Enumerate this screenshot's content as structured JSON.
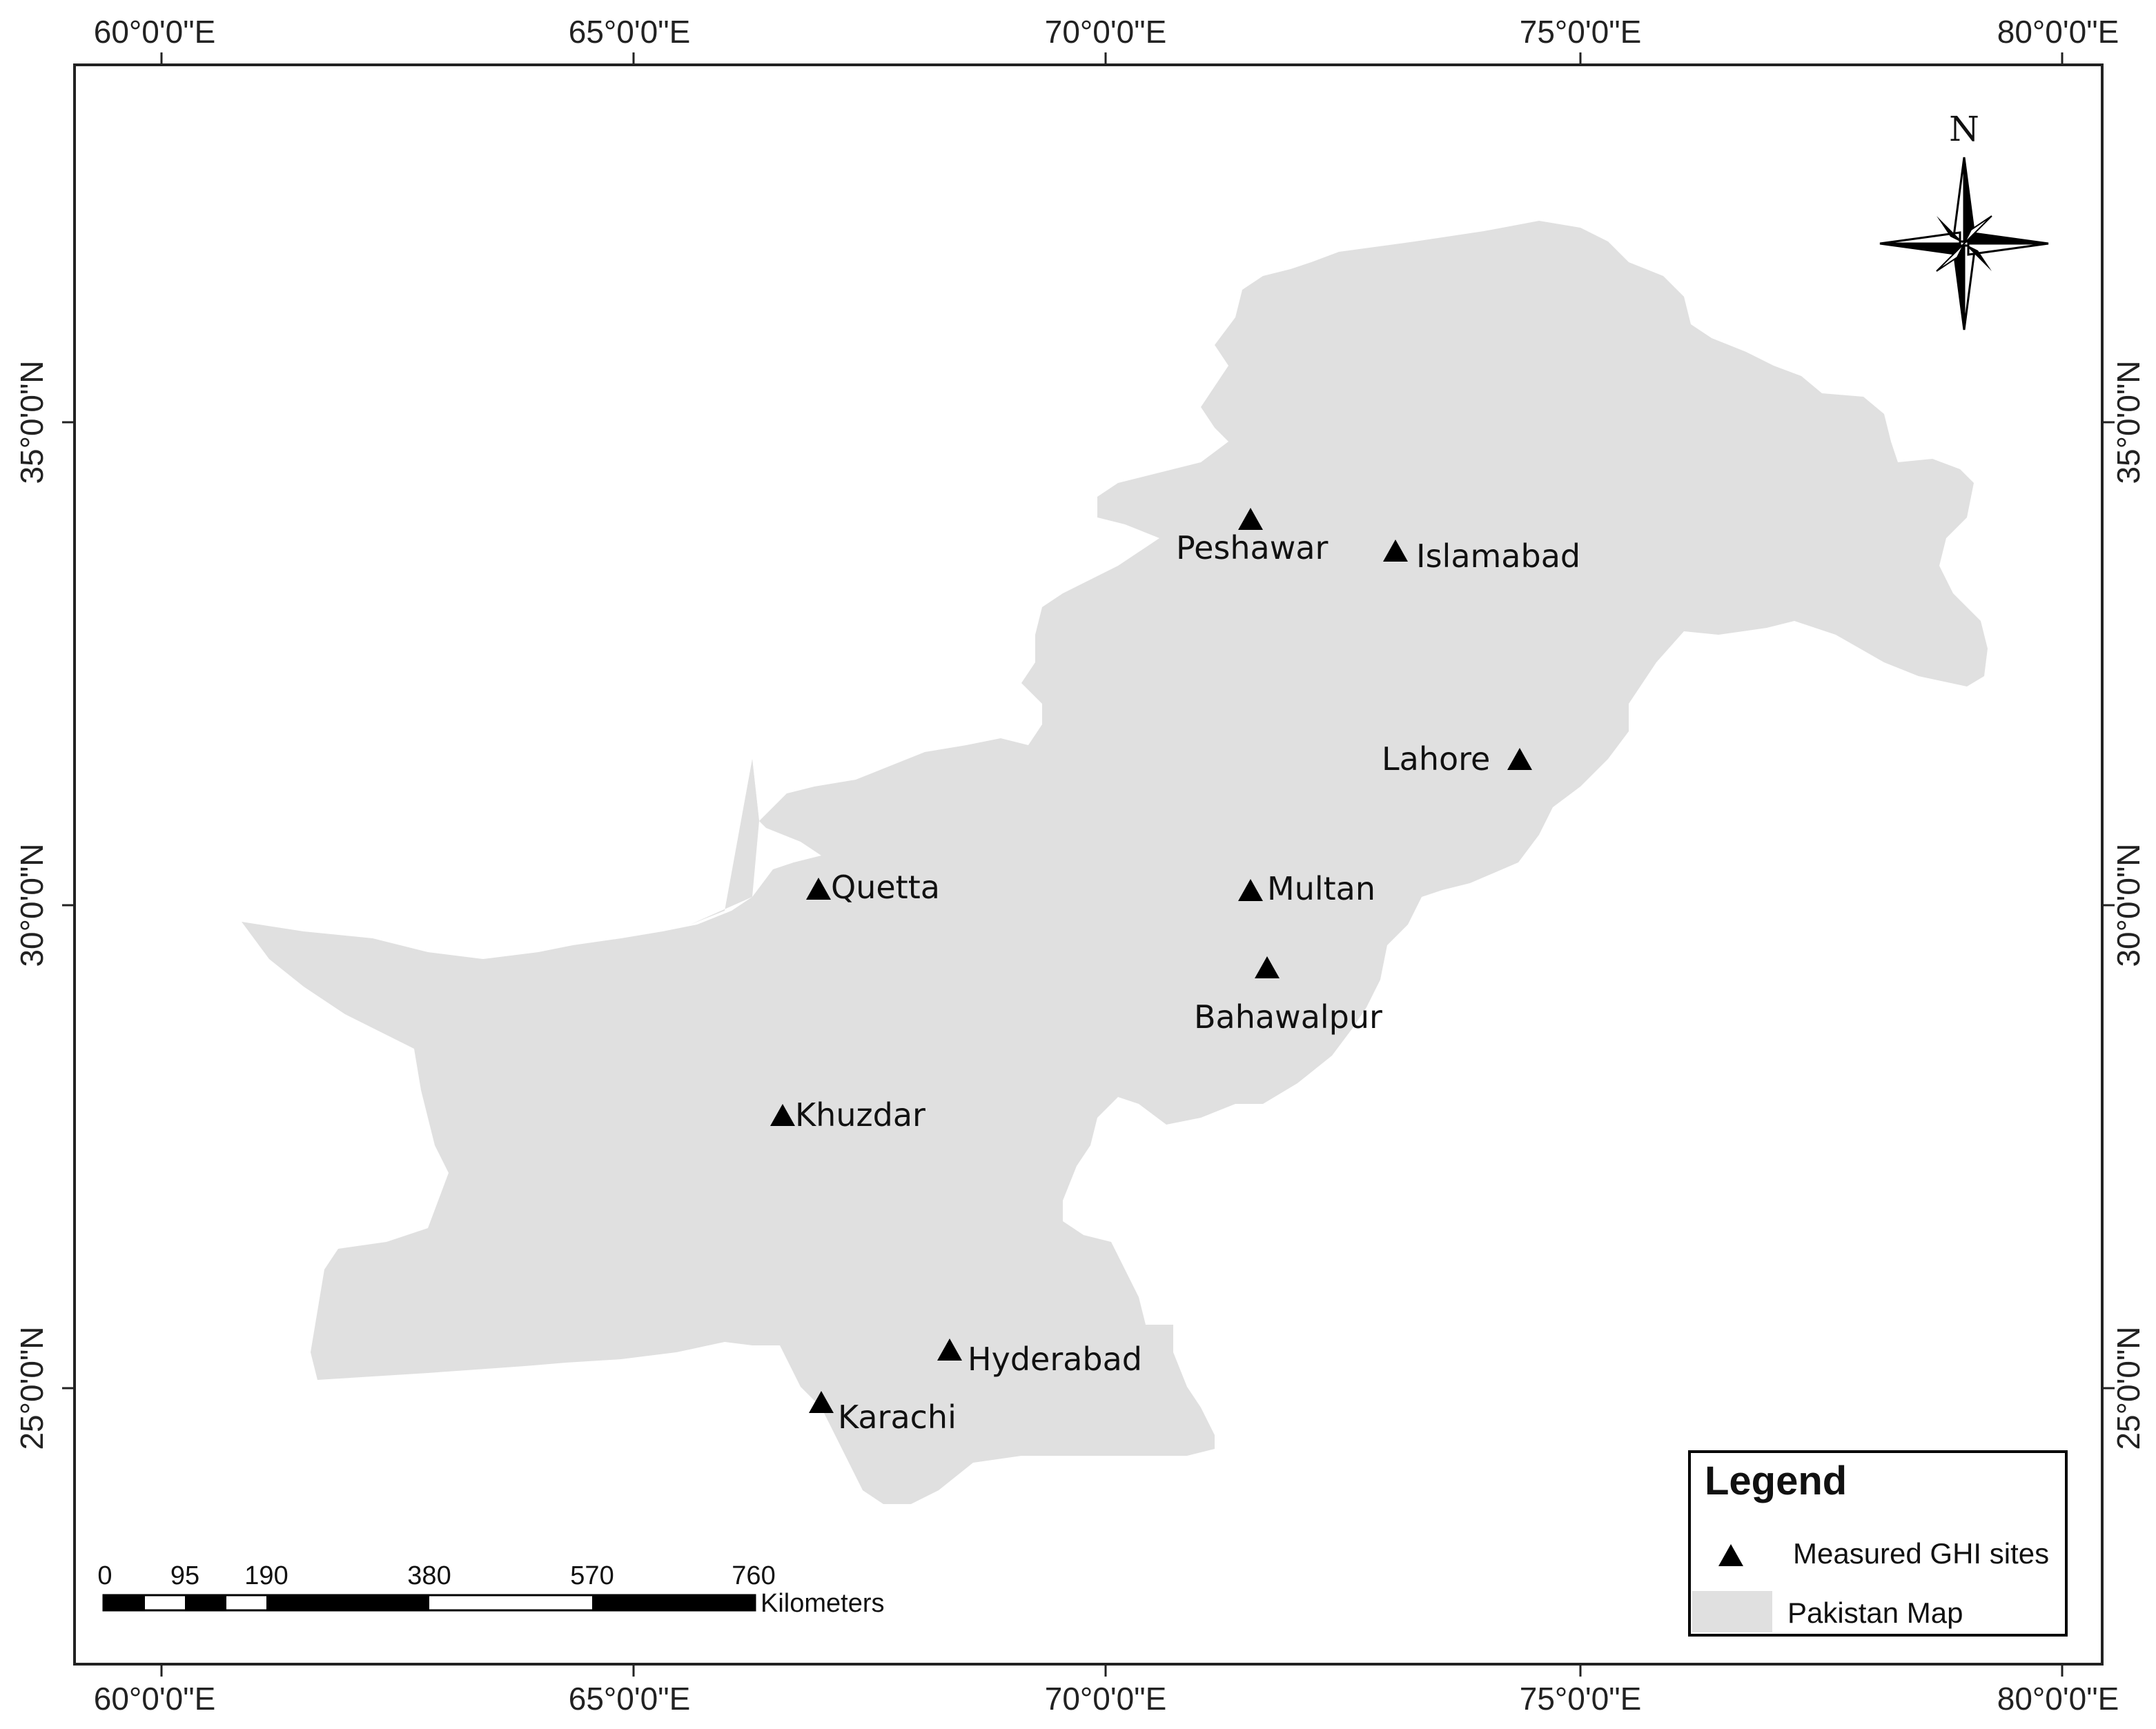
{
  "map": {
    "colors": {
      "land": "#e0e0e0",
      "frame": "#222222",
      "marker": "#000000"
    },
    "longitude_labels": [
      "60°0'0\"E",
      "65°0'0\"E",
      "70°0'0\"E",
      "75°0'0\"E",
      "80°0'0\"E"
    ],
    "latitude_labels": [
      "35°0'0\"N",
      "30°0'0\"N",
      "25°0'0\"N"
    ],
    "north_label": "N",
    "sites": [
      {
        "name": "Peshawar"
      },
      {
        "name": "Islamabad"
      },
      {
        "name": "Lahore"
      },
      {
        "name": "Quetta"
      },
      {
        "name": "Multan"
      },
      {
        "name": "Bahawalpur"
      },
      {
        "name": "Khuzdar"
      },
      {
        "name": "Hyderabad"
      },
      {
        "name": "Karachi"
      }
    ],
    "scale_bar": {
      "ticks": [
        "0",
        "95",
        "190",
        "380",
        "570",
        "760"
      ],
      "unit": "Kilometers"
    },
    "legend": {
      "title": "Legend",
      "items": [
        {
          "label": "Measured GHI sites",
          "icon": "triangle-marker-icon"
        },
        {
          "label": "Pakistan Map",
          "icon": "gray-swatch"
        }
      ]
    }
  }
}
